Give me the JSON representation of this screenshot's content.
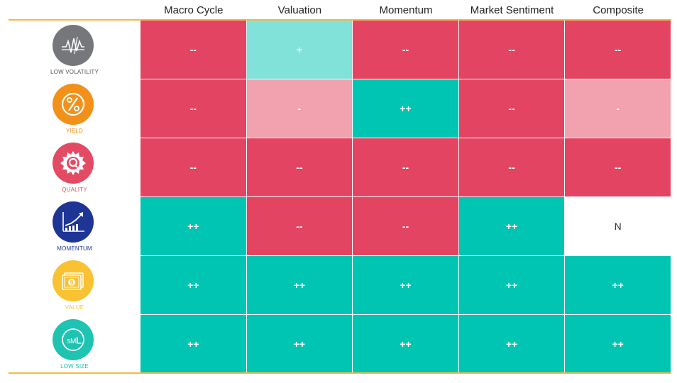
{
  "chart_data": {
    "type": "table",
    "columns": [
      "Macro Cycle",
      "Valuation",
      "Momentum",
      "Market Sentiment",
      "Composite"
    ],
    "rows": [
      {
        "factor": "LOW VOLATILITY",
        "icon": "volatility-icon",
        "color": "#76777b",
        "values": [
          "--",
          "+",
          "--",
          "--",
          "--"
        ]
      },
      {
        "factor": "YIELD",
        "icon": "percent-icon",
        "color": "#f39019",
        "values": [
          "--",
          "-",
          "++",
          "--",
          "-"
        ]
      },
      {
        "factor": "QUALITY",
        "icon": "quality-seal-icon",
        "color": "#e34a64",
        "values": [
          "--",
          "--",
          "--",
          "--",
          "--"
        ]
      },
      {
        "factor": "MOMENTUM",
        "icon": "rising-chart-icon",
        "color": "#1f3596",
        "values": [
          "++",
          "--",
          "--",
          "++",
          "N"
        ]
      },
      {
        "factor": "VALUE",
        "icon": "money-icon",
        "color": "#f9c233",
        "values": [
          "++",
          "++",
          "++",
          "++",
          "++"
        ]
      },
      {
        "factor": "LOW SIZE",
        "icon": "sml-size-icon",
        "color": "#1ec3b1",
        "values": [
          "++",
          "++",
          "++",
          "++",
          "++"
        ]
      }
    ],
    "value_colors": {
      "--": "#e34461",
      "-": "#f2a1ae",
      "+": "#80e2d9",
      "++": "#00c5b3",
      "N": "#ffffff"
    }
  }
}
